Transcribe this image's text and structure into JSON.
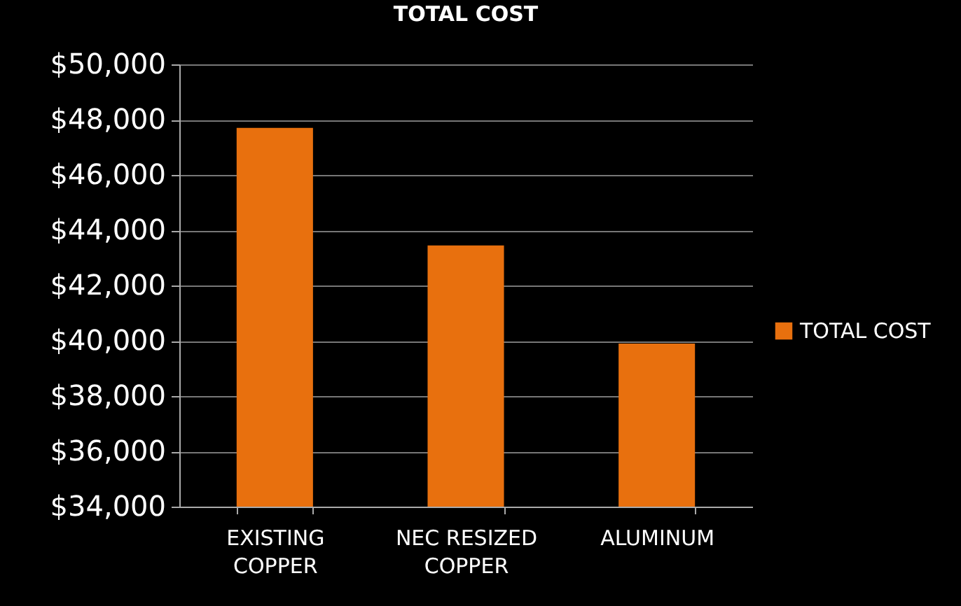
{
  "chart_data": {
    "type": "bar",
    "title": "TOTAL COST",
    "categories": [
      "EXISTING COPPER",
      "NEC RESIZED COPPER",
      "ALUMINUM"
    ],
    "series": [
      {
        "name": "TOTAL COST",
        "color": "#e8700e",
        "values": [
          47700,
          43450,
          39900
        ]
      }
    ],
    "ylim": [
      34000,
      50000
    ],
    "yticks": [
      {
        "value": 34000,
        "label": "$34,000"
      },
      {
        "value": 36000,
        "label": "$36,000"
      },
      {
        "value": 38000,
        "label": "$38,000"
      },
      {
        "value": 40000,
        "label": "$40,000"
      },
      {
        "value": 42000,
        "label": "$42,000"
      },
      {
        "value": 44000,
        "label": "$44,000"
      },
      {
        "value": 46000,
        "label": "$46,000"
      },
      {
        "value": 48000,
        "label": "$48,000"
      },
      {
        "value": 50000,
        "label": "$50,000"
      }
    ],
    "grid": true,
    "legend": "right"
  }
}
